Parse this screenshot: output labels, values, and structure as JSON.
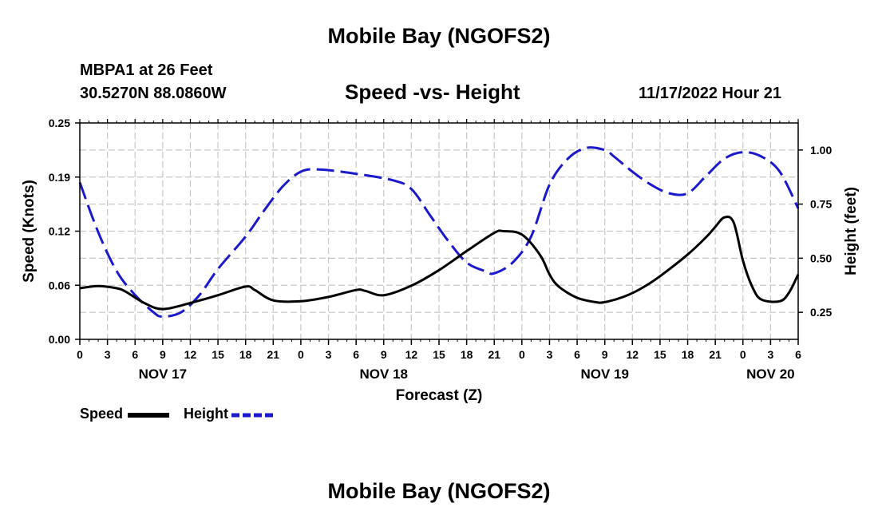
{
  "header": {
    "title": "Mobile Bay (NGOFS2)",
    "station": "MBPA1 at 26 Feet",
    "coords": "30.5270N  88.0860W",
    "subtitle": "Speed -vs- Height",
    "timestamp": "11/17/2022 Hour 21"
  },
  "footer": {
    "title": "Mobile Bay (NGOFS2)"
  },
  "colors": {
    "speed": "#000000",
    "height": "#1a1acc",
    "grid": "#c8c8c8"
  },
  "chart_data": {
    "type": "line",
    "title": "Speed -vs- Height",
    "xlabel": "Forecast (Z)",
    "ylabel": "Speed (Knots)",
    "y2label": "Height (feet)",
    "x_unit": "forecast hours from NOV 17 00Z",
    "xlim": [
      0,
      78
    ],
    "ylim": [
      0,
      0.25
    ],
    "y2lim": [
      0.125,
      1.125
    ],
    "x_ticks": [
      0,
      3,
      6,
      9,
      12,
      15,
      18,
      21,
      24,
      27,
      30,
      33,
      36,
      39,
      42,
      45,
      48,
      51,
      54,
      57,
      60,
      63,
      66,
      69,
      72,
      75,
      78
    ],
    "x_tick_labels": [
      "0",
      "3",
      "6",
      "9",
      "12",
      "15",
      "18",
      "21",
      "0",
      "3",
      "6",
      "9",
      "12",
      "15",
      "18",
      "21",
      "0",
      "3",
      "6",
      "9",
      "12",
      "15",
      "18",
      "21",
      "0",
      "3",
      "6"
    ],
    "y_ticks": [
      0,
      0.0625,
      0.125,
      0.1875,
      0.25
    ],
    "y_tick_labels": [
      "0.00",
      "0.06",
      "0.12",
      "0.19",
      "0.25"
    ],
    "y2_ticks": [
      0.25,
      0.5,
      0.75,
      1.0
    ],
    "y2_tick_labels": [
      "0.25",
      "0.50",
      "0.75",
      "1.00"
    ],
    "date_labels": [
      {
        "hour": 9,
        "label": "NOV 17"
      },
      {
        "hour": 33,
        "label": "NOV 18"
      },
      {
        "hour": 57,
        "label": "NOV 19"
      },
      {
        "hour": 75,
        "label": "NOV 20"
      }
    ],
    "series": [
      {
        "name": "Speed",
        "axis": "left",
        "style": "solid",
        "x": [
          0,
          2,
          4,
          5,
          7,
          9,
          12,
          15,
          18,
          19,
          21,
          24,
          27,
          30,
          31,
          33,
          36,
          39,
          42,
          45,
          46,
          48,
          50,
          51,
          52,
          54,
          56,
          57,
          59,
          61,
          63,
          66,
          68,
          69,
          70,
          71,
          72,
          73,
          74,
          76,
          77,
          78
        ],
        "values": [
          0.059,
          0.0615,
          0.059,
          0.055,
          0.042,
          0.035,
          0.042,
          0.051,
          0.061,
          0.057,
          0.045,
          0.044,
          0.049,
          0.057,
          0.056,
          0.051,
          0.062,
          0.08,
          0.102,
          0.123,
          0.125,
          0.121,
          0.097,
          0.075,
          0.061,
          0.048,
          0.043,
          0.043,
          0.049,
          0.059,
          0.073,
          0.098,
          0.118,
          0.13,
          0.141,
          0.135,
          0.091,
          0.061,
          0.046,
          0.044,
          0.054,
          0.075
        ]
      },
      {
        "name": "Height",
        "axis": "right",
        "style": "dashed",
        "x": [
          0,
          2,
          4,
          6,
          8,
          9,
          11,
          13,
          15,
          18,
          20,
          22,
          24,
          26,
          30,
          34,
          36,
          38,
          40,
          42,
          44,
          45,
          47,
          49,
          51,
          53,
          55,
          57,
          58,
          60,
          62,
          64,
          66,
          68,
          70,
          72,
          74,
          76,
          78
        ],
        "values": [
          0.85,
          0.62,
          0.44,
          0.33,
          0.25,
          0.23,
          0.25,
          0.33,
          0.45,
          0.6,
          0.72,
          0.83,
          0.9,
          0.91,
          0.89,
          0.86,
          0.82,
          0.7,
          0.58,
          0.48,
          0.44,
          0.43,
          0.48,
          0.6,
          0.84,
          0.96,
          1.01,
          1.0,
          0.97,
          0.9,
          0.84,
          0.8,
          0.8,
          0.88,
          0.96,
          0.99,
          0.97,
          0.9,
          0.73
        ]
      }
    ],
    "legend": [
      {
        "name": "Speed",
        "color": "#000000",
        "style": "solid"
      },
      {
        "name": "Height",
        "color": "#1a1acc",
        "style": "dashed"
      }
    ],
    "legend_position": "bottom-left",
    "grid": true
  }
}
